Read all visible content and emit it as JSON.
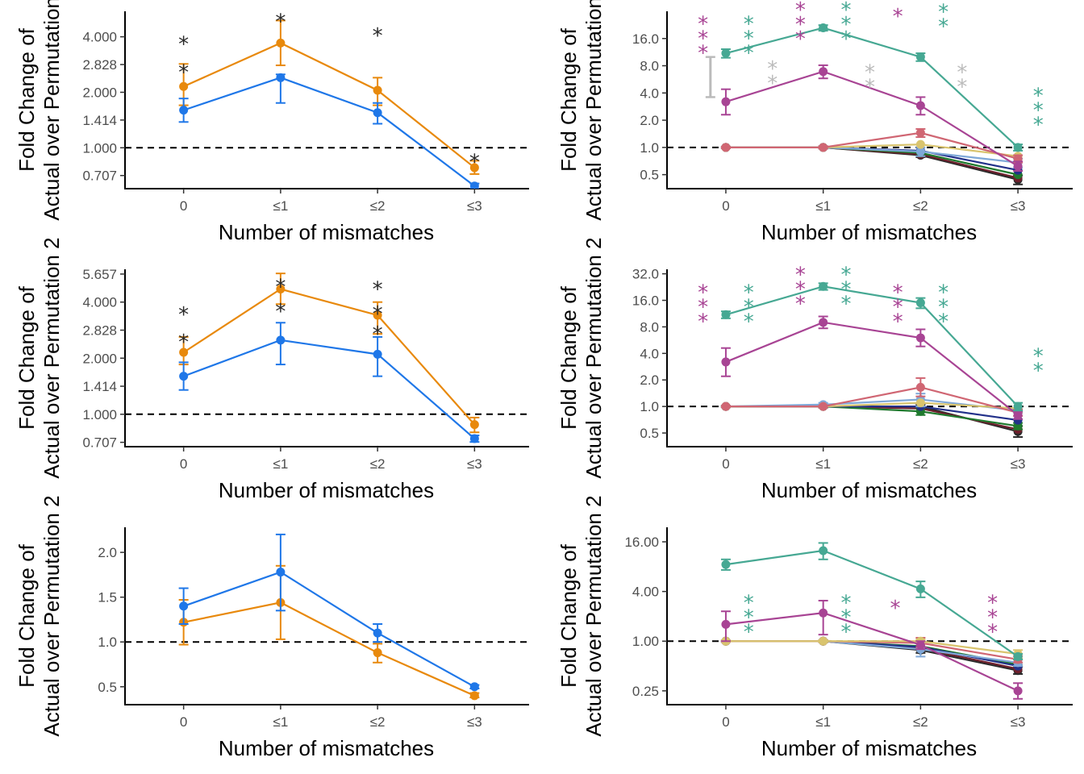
{
  "xlabel": "Number of mismatches",
  "ylabel_line1": "Fold Change of",
  "ylabel_line2": "Actual over Permutation 2",
  "colors": {
    "blue": "#1f77e8",
    "orange": "#e8890c",
    "teal": "#46a893",
    "purple": "#a84494",
    "gray": "#bbbbbb",
    "rose": "#d06673",
    "gold": "#d9c46e",
    "ltblue": "#7fa8d8",
    "navy": "#23318a",
    "green": "#1f7a2e",
    "maroon": "#6e1f2c",
    "black": "#2a2a2a"
  },
  "chart_data": [
    {
      "type": "line",
      "panel": "top-left",
      "categories": [
        "0",
        "≤1",
        "≤2",
        "≤3"
      ],
      "xlabel": "Number of mismatches",
      "ylabel": "Fold Change of Actual over Permutation 2",
      "yscale": "log2",
      "ylim": [
        0.6,
        5.5
      ],
      "yticks": [
        0.707,
        1,
        1.414,
        2,
        2.828,
        4
      ],
      "ytick_labels": [
        "0.707",
        "1.000",
        "1.414",
        "2.000",
        "2.828",
        "4.000"
      ],
      "decimals": 3,
      "reference_y": 1,
      "series": [
        {
          "color": "blue",
          "values": [
            1.6,
            2.4,
            1.55,
            0.62
          ],
          "lower": [
            1.38,
            1.75,
            1.35,
            0.6
          ],
          "upper": [
            1.85,
            2.5,
            1.75,
            0.64
          ]
        },
        {
          "color": "orange",
          "values": [
            2.15,
            3.7,
            2.05,
            0.78
          ],
          "lower": [
            1.7,
            2.8,
            1.7,
            0.72
          ],
          "upper": [
            2.85,
            4.9,
            2.4,
            0.85
          ]
        }
      ],
      "significance": [
        {
          "x": "0",
          "color": "black",
          "y": 4.0,
          "count": 1
        },
        {
          "x": "0",
          "color": "black",
          "y": 2.82,
          "count": 1
        },
        {
          "x": "≤1",
          "color": "black",
          "y": 5.3,
          "count": 1
        },
        {
          "x": "≤2",
          "color": "black",
          "y": 4.45,
          "count": 1
        },
        {
          "x": "≤3",
          "color": "black",
          "y": 0.92,
          "count": 1
        }
      ]
    },
    {
      "type": "line",
      "panel": "top-right",
      "categories": [
        "0",
        "≤1",
        "≤2",
        "≤3"
      ],
      "xlabel": "Number of mismatches",
      "ylabel": "Fold Change of Actual over Permutation 2",
      "yscale": "log2",
      "ylim": [
        0.35,
        32
      ],
      "yticks": [
        0.5,
        1,
        2,
        4,
        8,
        16
      ],
      "ytick_labels": [
        "0.5",
        "1.0",
        "2.0",
        "4.0",
        "8.0",
        "16.0"
      ],
      "decimals": 1,
      "reference_y": 1,
      "series": [
        {
          "color": "teal",
          "values": [
            11,
            21,
            10,
            1.0
          ],
          "lower": [
            9.8,
            19.5,
            9.0,
            0.92
          ],
          "upper": [
            12.2,
            22.5,
            11.0,
            1.08
          ]
        },
        {
          "color": "purple",
          "values": [
            3.2,
            6.9,
            2.9,
            0.62
          ],
          "lower": [
            2.3,
            5.8,
            2.3,
            0.55
          ],
          "upper": [
            4.4,
            8.1,
            3.6,
            0.7
          ]
        },
        {
          "color": "gray",
          "values": [
            5.9,
            null,
            null,
            null
          ],
          "lower": [
            3.6,
            null,
            null,
            null
          ],
          "upper": [
            10.0,
            null,
            null,
            null
          ],
          "no_point": true
        },
        {
          "color": "rose",
          "values": [
            1.0,
            1.0,
            1.45,
            0.75
          ],
          "lower": [
            0.98,
            0.97,
            1.3,
            0.68
          ],
          "upper": [
            1.02,
            1.03,
            1.6,
            0.82
          ]
        },
        {
          "color": "gold",
          "values": [
            1.0,
            1.0,
            1.08,
            0.8
          ]
        },
        {
          "color": "ltblue",
          "values": [
            1.0,
            1.0,
            0.9,
            0.68
          ],
          "lower": [
            0.98,
            0.97,
            0.8,
            0.6
          ],
          "upper": [
            1.02,
            1.03,
            1.0,
            0.75
          ]
        },
        {
          "color": "navy",
          "values": [
            1.0,
            1.0,
            0.92,
            0.56
          ]
        },
        {
          "color": "green",
          "values": [
            1.0,
            1.0,
            0.87,
            0.5
          ]
        },
        {
          "color": "maroon",
          "values": [
            1.0,
            1.0,
            0.84,
            0.46
          ]
        },
        {
          "color": "black",
          "values": [
            1.0,
            1.0,
            0.82,
            0.44
          ],
          "lower": [
            0.98,
            0.97,
            0.78,
            0.39
          ],
          "upper": [
            1.02,
            1.03,
            0.86,
            0.49
          ]
        }
      ],
      "significance": [
        {
          "x": "0",
          "color": "purple",
          "y": 28,
          "count": 3,
          "offset": -0.09
        },
        {
          "x": "0",
          "color": "teal",
          "y": 28,
          "count": 3,
          "offset": 0.09
        },
        {
          "x": "0",
          "color": "gray",
          "y": 8.5,
          "count": 2,
          "offset": -0.26
        },
        {
          "x": "≤1",
          "color": "purple",
          "y": 40,
          "count": 3,
          "offset": -0.09
        },
        {
          "x": "≤1",
          "color": "teal",
          "y": 40,
          "count": 3,
          "offset": 0.09
        },
        {
          "x": "≤1",
          "color": "gray",
          "y": 9,
          "count": 2,
          "offset": -0.2
        },
        {
          "x": "≤2",
          "color": "purple",
          "y": 34,
          "count": 1,
          "offset": -0.09
        },
        {
          "x": "≤2",
          "color": "teal",
          "y": 38,
          "count": 2,
          "offset": 0.09
        },
        {
          "x": "≤2",
          "color": "gray",
          "y": 8.2,
          "count": 2,
          "offset": -0.2
        },
        {
          "x": "≤3",
          "color": "gray",
          "y": 8.2,
          "count": 2,
          "offset": -0.22
        },
        {
          "x": "≤3",
          "color": "teal",
          "y": 4.5,
          "count": 3,
          "offset": 0.08
        }
      ]
    },
    {
      "type": "line",
      "panel": "middle-left",
      "categories": [
        "0",
        "≤1",
        "≤2",
        "≤3"
      ],
      "xlabel": "Number of mismatches",
      "ylabel": "Fold Change of Actual over Permutation 2",
      "yscale": "log2",
      "ylim": [
        0.67,
        6.0
      ],
      "yticks": [
        0.707,
        1,
        1.414,
        2,
        2.828,
        4,
        5.657
      ],
      "ytick_labels": [
        "0.707",
        "1.000",
        "1.414",
        "2.000",
        "2.828",
        "4.000",
        "5.657"
      ],
      "decimals": 3,
      "reference_y": 1,
      "series": [
        {
          "color": "blue",
          "values": [
            1.6,
            2.5,
            2.1,
            0.74
          ],
          "lower": [
            1.35,
            1.85,
            1.6,
            0.71
          ],
          "upper": [
            1.9,
            3.1,
            2.6,
            0.77
          ]
        },
        {
          "color": "orange",
          "values": [
            2.15,
            4.7,
            3.4,
            0.88
          ],
          "lower": [
            1.85,
            3.9,
            2.7,
            0.8
          ],
          "upper": [
            2.6,
            5.7,
            4.0,
            0.96
          ]
        }
      ],
      "significance": [
        {
          "x": "0",
          "color": "black",
          "y": 3.75,
          "count": 1
        },
        {
          "x": "0",
          "color": "black",
          "y": 2.68,
          "count": 1
        },
        {
          "x": "≤1",
          "color": "black",
          "y": 5.3,
          "count": 1
        },
        {
          "x": "≤1",
          "color": "black",
          "y": 3.9,
          "count": 1
        },
        {
          "x": "≤2",
          "color": "black",
          "y": 5.15,
          "count": 1
        },
        {
          "x": "≤2",
          "color": "black",
          "y": 3.8,
          "count": 1
        },
        {
          "x": "≤2",
          "color": "black",
          "y": 2.95,
          "count": 1
        }
      ]
    },
    {
      "type": "line",
      "panel": "middle-right",
      "categories": [
        "0",
        "≤1",
        "≤2",
        "≤3"
      ],
      "xlabel": "Number of mismatches",
      "ylabel": "Fold Change of Actual over Permutation 2",
      "yscale": "log2",
      "ylim": [
        0.35,
        36
      ],
      "yticks": [
        0.5,
        1,
        2,
        4,
        8,
        16,
        32
      ],
      "ytick_labels": [
        "0.5",
        "1.0",
        "2.0",
        "4.0",
        "8.0",
        "16.0",
        "32.0"
      ],
      "decimals": 1,
      "reference_y": 1,
      "series": [
        {
          "color": "teal",
          "values": [
            11,
            23,
            15,
            1.0
          ],
          "lower": [
            10,
            21,
            13,
            0.9
          ],
          "upper": [
            12,
            25,
            17,
            1.1
          ]
        },
        {
          "color": "purple",
          "values": [
            3.2,
            9,
            6,
            0.8
          ],
          "lower": [
            2.2,
            7.7,
            4.8,
            0.72
          ],
          "upper": [
            4.6,
            10.5,
            7.5,
            0.88
          ]
        },
        {
          "color": "rose",
          "values": [
            1.0,
            1.0,
            1.65,
            0.85
          ],
          "lower": [
            0.98,
            0.97,
            1.3,
            0.78
          ],
          "upper": [
            1.02,
            1.03,
            2.1,
            0.92
          ]
        },
        {
          "color": "gold",
          "values": [
            1.0,
            1.0,
            1.1,
            0.95
          ]
        },
        {
          "color": "ltblue",
          "values": [
            1.0,
            1.05,
            1.2,
            0.9
          ],
          "lower": [
            0.98,
            1.0,
            1.0,
            0.85
          ],
          "upper": [
            1.02,
            1.1,
            1.4,
            0.95
          ]
        },
        {
          "color": "navy",
          "values": [
            1.0,
            1.0,
            1.0,
            0.7
          ]
        },
        {
          "color": "green",
          "values": [
            1.0,
            1.0,
            0.88,
            0.6
          ],
          "lower": [
            0.98,
            0.97,
            0.8,
            0.55
          ],
          "upper": [
            1.02,
            1.03,
            0.96,
            0.65
          ]
        },
        {
          "color": "maroon",
          "values": [
            1.0,
            1.0,
            0.95,
            0.55
          ]
        },
        {
          "color": "black",
          "values": [
            1.0,
            1.0,
            1.0,
            0.52
          ],
          "lower": [
            0.98,
            0.97,
            0.95,
            0.45
          ],
          "upper": [
            1.02,
            1.03,
            1.05,
            0.6
          ]
        }
      ],
      "significance": [
        {
          "x": "0",
          "color": "purple",
          "y": 24,
          "count": 3,
          "offset": -0.09
        },
        {
          "x": "0",
          "color": "teal",
          "y": 24,
          "count": 3,
          "offset": 0.09
        },
        {
          "x": "≤1",
          "color": "purple",
          "y": 38,
          "count": 3,
          "offset": -0.09
        },
        {
          "x": "≤1",
          "color": "teal",
          "y": 38,
          "count": 3,
          "offset": 0.09
        },
        {
          "x": "≤2",
          "color": "purple",
          "y": 24,
          "count": 3,
          "offset": -0.09
        },
        {
          "x": "≤2",
          "color": "teal",
          "y": 24,
          "count": 3,
          "offset": 0.09
        },
        {
          "x": "≤3",
          "color": "teal",
          "y": 4.5,
          "count": 2,
          "offset": 0.08
        }
      ]
    },
    {
      "type": "line",
      "panel": "bottom-left",
      "categories": [
        "0",
        "≤1",
        "≤2",
        "≤3"
      ],
      "xlabel": "Number of mismatches",
      "ylabel": "Fold Change of Actual over Permutation 2",
      "yscale": "linear",
      "ylim": [
        0.3,
        2.28
      ],
      "yticks": [
        0.5,
        1.0,
        1.5,
        2.0
      ],
      "ytick_labels": [
        "0.5",
        "1.0",
        "1.5",
        "2.0"
      ],
      "decimals": 1,
      "reference_y": 1,
      "series": [
        {
          "color": "blue",
          "values": [
            1.4,
            1.78,
            1.1,
            0.5
          ],
          "lower": [
            1.2,
            1.35,
            1.0,
            0.48
          ],
          "upper": [
            1.6,
            2.2,
            1.2,
            0.52
          ]
        },
        {
          "color": "orange",
          "values": [
            1.22,
            1.44,
            0.88,
            0.4
          ],
          "lower": [
            0.97,
            1.03,
            0.77,
            0.38
          ],
          "upper": [
            1.47,
            1.85,
            0.98,
            0.43
          ]
        }
      ],
      "significance": []
    },
    {
      "type": "line",
      "panel": "bottom-right",
      "categories": [
        "0",
        "≤1",
        "≤2",
        "≤3"
      ],
      "xlabel": "Number of mismatches",
      "ylabel": "Fold Change of Actual over Permutation 2",
      "yscale": "log2",
      "ylim": [
        0.17,
        24
      ],
      "yticks": [
        0.25,
        1,
        4,
        16
      ],
      "ytick_labels": [
        "0.25",
        "1.00",
        "4.00",
        "16.00"
      ],
      "decimals": 2,
      "reference_y": 1,
      "series": [
        {
          "color": "teal",
          "values": [
            8.5,
            12.5,
            4.3,
            0.65
          ],
          "lower": [
            7.3,
            9.8,
            3.4,
            0.6
          ],
          "upper": [
            9.8,
            15.5,
            5.3,
            0.7
          ]
        },
        {
          "color": "purple",
          "values": [
            1.6,
            2.2,
            0.9,
            0.25
          ],
          "lower": [
            1.0,
            1.2,
            0.8,
            0.2
          ],
          "upper": [
            2.3,
            3.1,
            1.0,
            0.31
          ]
        },
        {
          "color": "gold",
          "values": [
            1.0,
            1.0,
            1.0,
            0.7
          ],
          "lower": [
            0.98,
            0.97,
            0.95,
            0.62
          ],
          "upper": [
            1.02,
            1.03,
            1.05,
            0.78
          ]
        },
        {
          "color": "rose",
          "values": [
            1.0,
            1.0,
            0.95,
            0.6
          ],
          "lower": [
            0.98,
            0.97,
            0.85,
            0.55
          ],
          "upper": [
            1.02,
            1.03,
            1.1,
            0.66
          ]
        },
        {
          "color": "ltblue",
          "values": [
            1.0,
            1.0,
            0.8,
            0.55
          ],
          "lower": [
            0.98,
            0.97,
            0.65,
            0.5
          ],
          "upper": [
            1.02,
            1.03,
            0.95,
            0.6
          ]
        },
        {
          "color": "navy",
          "values": [
            1.0,
            1.0,
            0.85,
            0.5
          ]
        },
        {
          "color": "green",
          "values": [
            1.0,
            1.0,
            0.87,
            0.52
          ]
        },
        {
          "color": "maroon",
          "values": [
            1.0,
            1.0,
            0.82,
            0.46
          ]
        },
        {
          "color": "black",
          "values": [
            1.0,
            1.0,
            0.78,
            0.44
          ],
          "lower": [
            0.98,
            0.97,
            0.72,
            0.4
          ],
          "upper": [
            1.02,
            1.03,
            0.84,
            0.49
          ]
        }
      ],
      "significance": [
        {
          "x": "0",
          "color": "teal",
          "y": 3.6,
          "count": 3,
          "offset": 0.09
        },
        {
          "x": "≤1",
          "color": "teal",
          "y": 3.6,
          "count": 3,
          "offset": 0.09
        },
        {
          "x": "≤2",
          "color": "purple",
          "y": 3.1,
          "count": 1,
          "offset": -0.1
        },
        {
          "x": "≤3",
          "color": "purple",
          "y": 3.6,
          "count": 3,
          "offset": -0.1
        }
      ]
    }
  ]
}
